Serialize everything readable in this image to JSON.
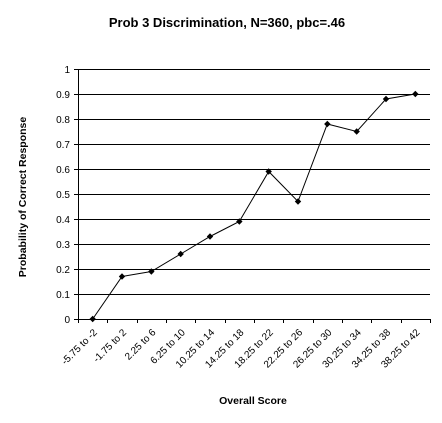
{
  "chart_data": {
    "type": "line",
    "title": "Prob 3 Discrimination, N=360, pbc=.46",
    "xlabel": "Overall Score",
    "ylabel": "Probability of Correct Response",
    "categories": [
      "-5.75 to -2",
      "-1.75 to 2",
      "2.25 to 6",
      "6.25 to 10",
      "10.25 to 14",
      "14.25 to 18",
      "18.25 to 22",
      "22.25 to 26",
      "26.25 to 30",
      "30.25 to 34",
      "34.25 to 38",
      "38.25 to 42"
    ],
    "values": [
      0.0,
      0.17,
      0.19,
      0.26,
      0.33,
      0.39,
      0.59,
      0.47,
      0.78,
      0.75,
      0.88,
      0.9
    ],
    "ylim": [
      0,
      1
    ],
    "yticks": [
      0,
      0.1,
      0.2,
      0.3,
      0.4,
      0.5,
      0.6,
      0.7,
      0.8,
      0.9,
      1
    ],
    "ytick_labels": [
      "0",
      "0.1",
      "0.2",
      "0.3",
      "0.4",
      "0.5",
      "0.6",
      "0.7",
      "0.8",
      "0.9",
      "1"
    ],
    "grid": true,
    "legend": "none",
    "marker": "diamond",
    "line_color": "#000000"
  }
}
